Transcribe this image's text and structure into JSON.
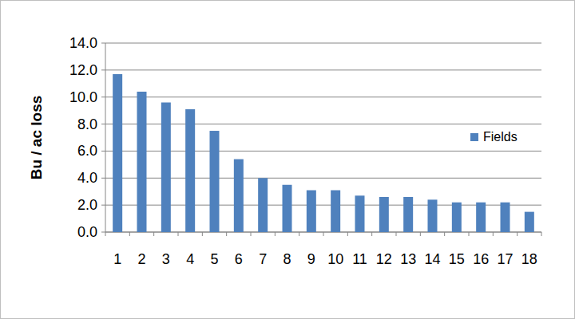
{
  "chart_data": {
    "type": "bar",
    "ylabel": "Bu / ac loss",
    "categories": [
      "1",
      "2",
      "3",
      "4",
      "5",
      "6",
      "7",
      "8",
      "9",
      "10",
      "11",
      "12",
      "13",
      "14",
      "15",
      "16",
      "17",
      "18"
    ],
    "series": [
      {
        "name": "Fields",
        "color": "#4f81bd",
        "values": [
          11.7,
          10.4,
          9.6,
          9.1,
          7.5,
          5.4,
          4.0,
          3.5,
          3.1,
          3.1,
          2.7,
          2.6,
          2.6,
          2.4,
          2.2,
          2.2,
          2.2,
          1.5
        ]
      }
    ],
    "ylim": [
      0,
      14
    ],
    "yticks": [
      {
        "value": 0,
        "label": "0.0"
      },
      {
        "value": 2,
        "label": "2.0"
      },
      {
        "value": 4,
        "label": "4.0"
      },
      {
        "value": 6,
        "label": "6.0"
      },
      {
        "value": 8,
        "label": "8.0"
      },
      {
        "value": 10,
        "label": "10.0"
      },
      {
        "value": 12,
        "label": "12.0"
      },
      {
        "value": 14,
        "label": "14.0"
      }
    ],
    "grid": true,
    "legend": "right"
  }
}
